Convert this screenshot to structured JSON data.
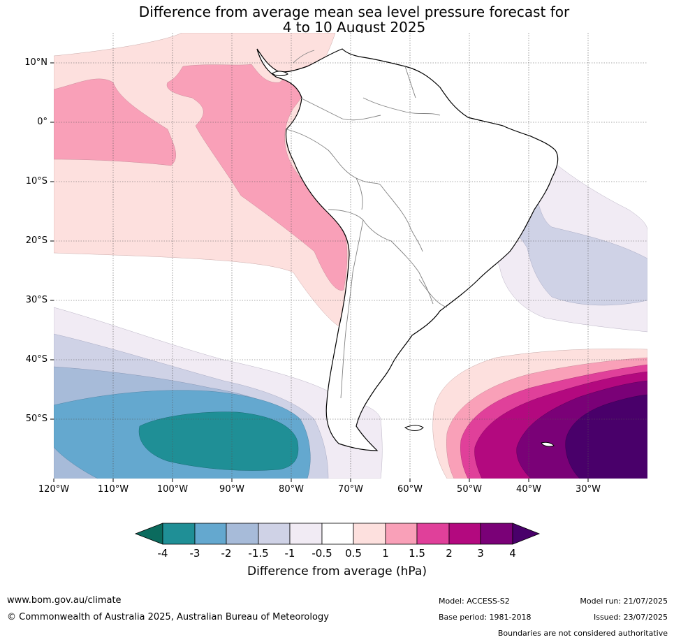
{
  "title_line1": "Difference from average mean sea level pressure forecast for",
  "title_line2": "4 to 10 August 2025",
  "lat_labels": [
    "10°N",
    "0°",
    "10°S",
    "20°S",
    "30°S",
    "40°S",
    "50°S"
  ],
  "lon_labels": [
    "120°W",
    "110°W",
    "100°W",
    "90°W",
    "80°W",
    "70°W",
    "60°W",
    "50°W",
    "40°W",
    "30°W"
  ],
  "colorbar": {
    "title": "Difference from average (hPa)",
    "ticks": [
      "-4",
      "-3",
      "-2",
      "-1.5",
      "-1",
      "-0.5",
      "0.5",
      "1",
      "1.5",
      "2",
      "3",
      "4"
    ],
    "colors": {
      "lt_-4": "#0b6b5e",
      "m4_m3": "#1f8f96",
      "m3_m2": "#64a8cf",
      "m2_m15": "#a7bbd9",
      "m15_m1": "#cfd2e6",
      "m1_m05": "#f1ebf4",
      "m05_05": "#ffffff",
      "p05_1": "#fde0de",
      "p1_15": "#f9a0b8",
      "p15_2": "#e0409a",
      "p2_3": "#b3097f",
      "p3_4": "#7a0177",
      "gt_4": "#49006a"
    }
  },
  "footer": {
    "url": "www.bom.gov.au/climate",
    "copyright": "© Commonwealth of Australia 2025, Australian Bureau of Meteorology",
    "model": "Model: ACCESS-S2",
    "base_period": "Base period: 1981-2018",
    "model_run": "Model run: 21/07/2025",
    "issued": "Issued: 23/07/2025",
    "disclaimer": "Boundaries are not considered authoritative"
  }
}
